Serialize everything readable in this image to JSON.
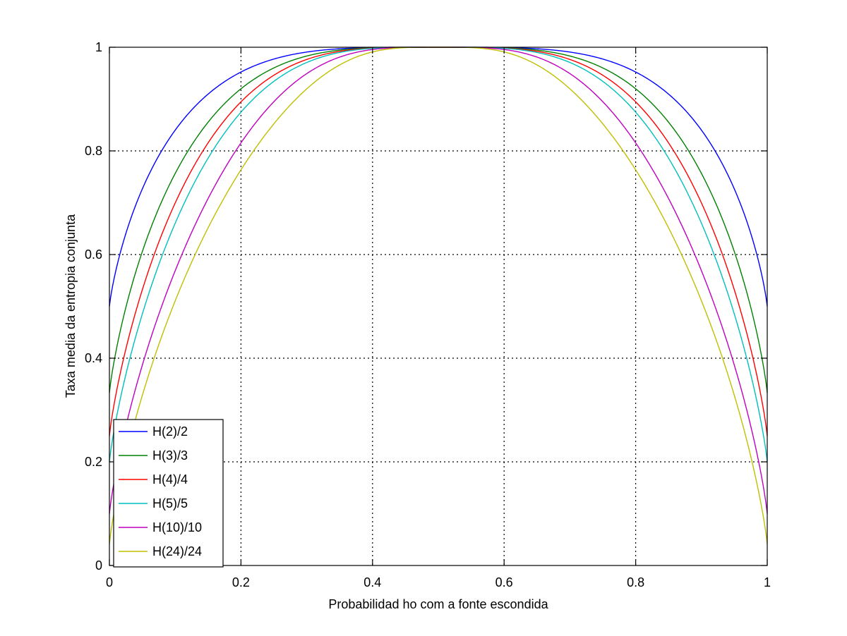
{
  "chart_data": {
    "type": "line",
    "title": "",
    "xlabel": "Probabilidad  ho com a fonte escondida",
    "ylabel": "Taxa media da entropia conjunta",
    "xlim": [
      0,
      1
    ],
    "ylim": [
      0,
      1
    ],
    "xticks": [
      0,
      0.2,
      0.4,
      0.6,
      0.8,
      1
    ],
    "xtick_labels": [
      "0",
      "0.2",
      "0.4",
      "0.6",
      "0.8",
      "1"
    ],
    "yticks": [
      0,
      0.2,
      0.4,
      0.6,
      0.8,
      1
    ],
    "ytick_labels": [
      "0",
      "0.2",
      "0.4",
      "0.6",
      "0.8",
      "1"
    ],
    "grid": true,
    "legend_position": "bottom-left",
    "series": [
      {
        "name": "H(2)/2",
        "n": 2,
        "color": "#0000ff"
      },
      {
        "name": "H(3)/3",
        "n": 3,
        "color": "#008000"
      },
      {
        "name": "H(4)/4",
        "n": 4,
        "color": "#ff0000"
      },
      {
        "name": "H(5)/5",
        "n": 5,
        "color": "#00bfbf"
      },
      {
        "name": "H(10)/10",
        "n": 10,
        "color": "#bf00bf"
      },
      {
        "name": "H(24)/24",
        "n": 24,
        "color": "#bfbf00"
      }
    ]
  }
}
